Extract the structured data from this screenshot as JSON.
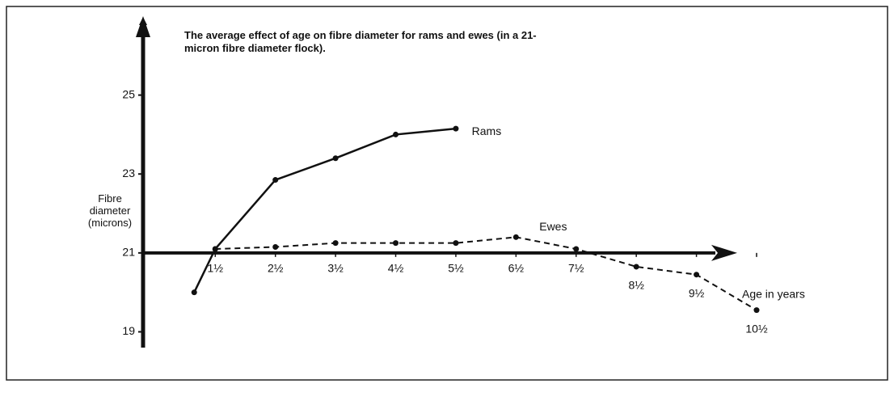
{
  "chart_data": {
    "type": "line",
    "title": "The average effect of age on fibre diameter for rams and ewes (in a 21-micron fibre diameter flock).",
    "y_label": "Fibre diameter (microns)",
    "x_label": "Age in years",
    "xlim": [
      0.3,
      10.5
    ],
    "xticks": [
      {
        "value": 1.5,
        "label": "1½"
      },
      {
        "value": 2.5,
        "label": "2½"
      },
      {
        "value": 3.5,
        "label": "3½"
      },
      {
        "value": 4.5,
        "label": "4½"
      },
      {
        "value": 5.5,
        "label": "5½"
      },
      {
        "value": 6.5,
        "label": "6½"
      },
      {
        "value": 7.5,
        "label": "7½"
      },
      {
        "value": 8.5,
        "label": "8½"
      },
      {
        "value": 9.5,
        "label": "9½"
      },
      {
        "value": 10.5,
        "label": "10½"
      }
    ],
    "ylim": [
      18.6,
      27
    ],
    "yticks": [
      19,
      21,
      23,
      25
    ],
    "series": [
      {
        "name": "Rams",
        "color": "#111111",
        "dashed": false,
        "x": [
          1.15,
          1.5,
          2.5,
          3.5,
          4.5,
          5.5
        ],
        "values": [
          20.0,
          21.1,
          22.85,
          23.4,
          24.0,
          24.15
        ]
      },
      {
        "name": "Ewes",
        "color": "#111111",
        "dashed": true,
        "x": [
          1.5,
          2.5,
          3.5,
          4.5,
          5.5,
          6.5,
          7.5,
          8.5,
          9.5,
          10.5
        ],
        "values": [
          21.1,
          21.15,
          21.25,
          21.25,
          21.25,
          21.4,
          21.1,
          20.65,
          20.45,
          19.55
        ]
      }
    ]
  }
}
